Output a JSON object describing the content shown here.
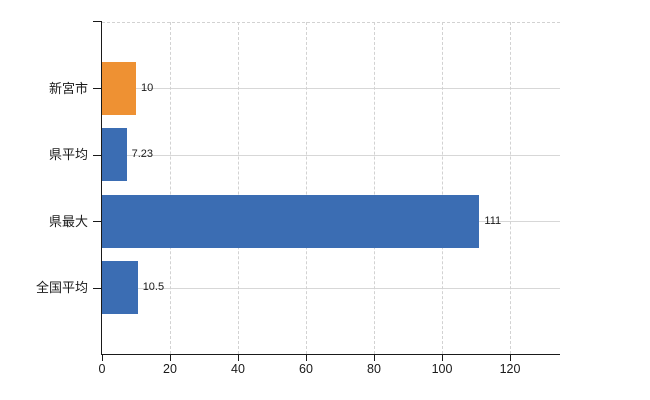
{
  "chart_data": {
    "type": "bar",
    "orientation": "horizontal",
    "title": "",
    "xlabel": "",
    "ylabel": "",
    "categories": [
      "新宮市",
      "県平均",
      "県最大",
      "全国平均"
    ],
    "values": [
      10,
      7.23,
      111,
      10.5
    ],
    "value_labels": [
      "10",
      "7.23",
      "111",
      "10.5"
    ],
    "bar_colors": [
      "#ee9133",
      "#3b6db3",
      "#3b6db3",
      "#3b6db3"
    ],
    "x_ticks": [
      0,
      20,
      40,
      60,
      80,
      100,
      120
    ],
    "x_tick_labels": [
      "0",
      "20",
      "40",
      "60",
      "80",
      "100",
      "120"
    ],
    "xlim": [
      0,
      134.7
    ],
    "grid": true,
    "legend": false
  },
  "colors": {
    "background": "#ffffff",
    "axis": "#1a1a1a",
    "grid_horizontal": "#d7d7d7",
    "grid_vertical": "#d2d2d2",
    "text": "#1a1a1a",
    "bar_orange": "#ee9133",
    "bar_blue": "#3b6db3"
  }
}
